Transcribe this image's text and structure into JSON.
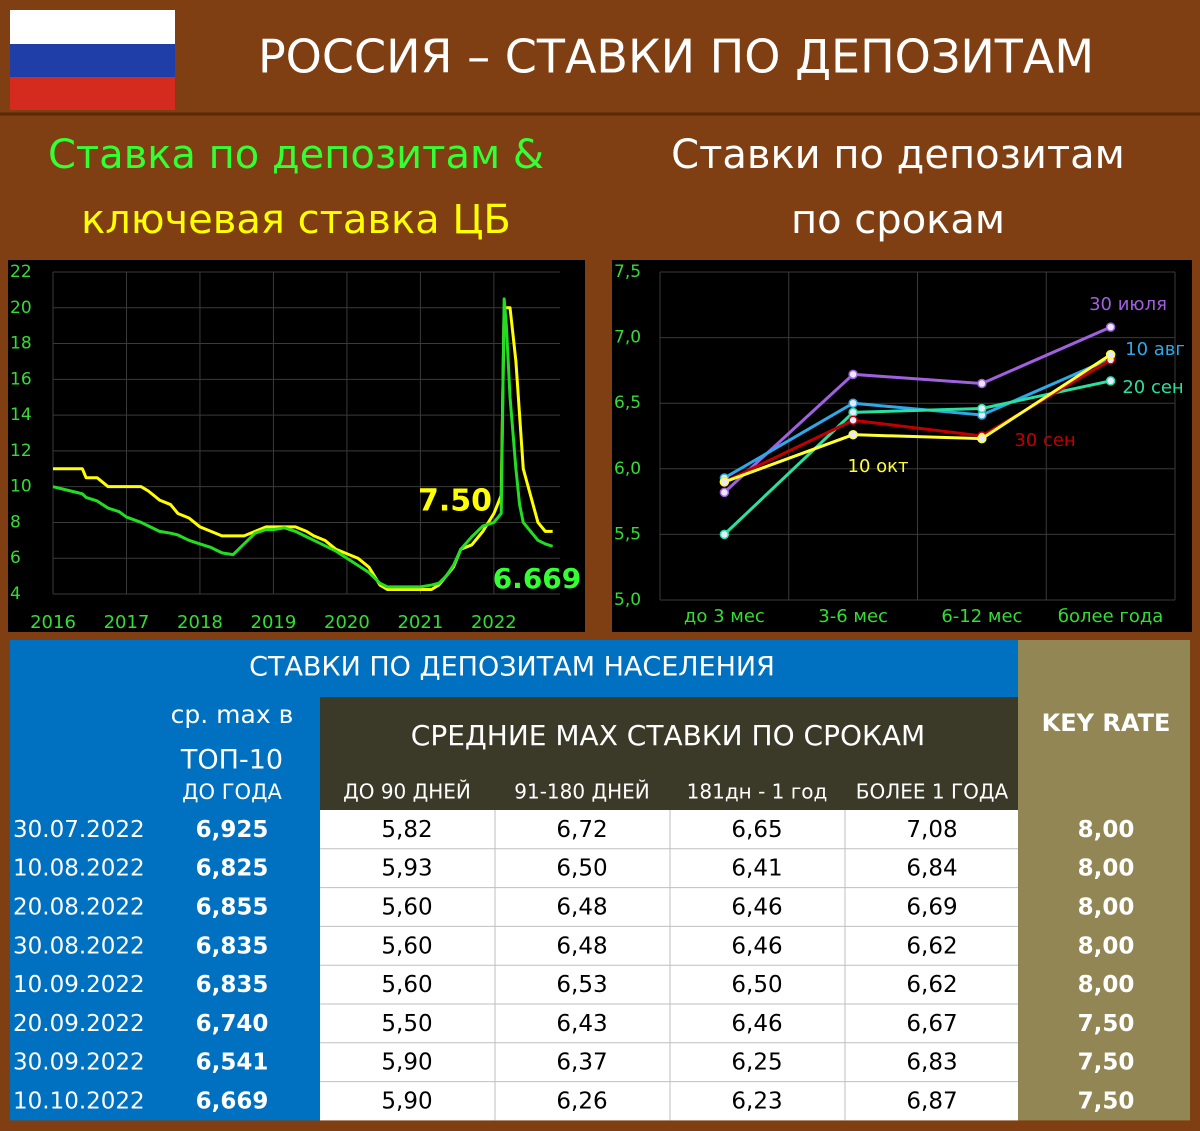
{
  "header": {
    "title": "РОССИЯ – СТАВКИ ПО ДЕПОЗИТАМ"
  },
  "panels": {
    "left_title": [
      "Ставка по депозитам &",
      "ключевая ставка ЦБ"
    ],
    "right_title": [
      "Ставки по депозитам",
      "по срокам"
    ]
  },
  "chart_data": [
    {
      "type": "line",
      "x": [
        2016.0,
        2016.2,
        2016.4,
        2016.45,
        2016.6,
        2016.75,
        2016.9,
        2017.0,
        2017.2,
        2017.3,
        2017.45,
        2017.6,
        2017.7,
        2017.85,
        2018.0,
        2018.15,
        2018.3,
        2018.45,
        2018.6,
        2018.75,
        2018.9,
        2019.0,
        2019.15,
        2019.3,
        2019.45,
        2019.55,
        2019.7,
        2019.85,
        2020.0,
        2020.15,
        2020.3,
        2020.45,
        2020.55,
        2020.7,
        2020.85,
        2021.0,
        2021.15,
        2021.25,
        2021.35,
        2021.45,
        2021.55,
        2021.7,
        2021.85,
        2022.0,
        2022.1,
        2022.14,
        2022.17,
        2022.22,
        2022.3,
        2022.35,
        2022.4,
        2022.5,
        2022.6,
        2022.7,
        2022.8
      ],
      "xlim": [
        2016,
        2022.9
      ],
      "xticks": [
        2016,
        2017,
        2018,
        2019,
        2020,
        2021,
        2022
      ],
      "ylim": [
        4,
        22
      ],
      "yticks": [
        4,
        6,
        8,
        10,
        12,
        14,
        16,
        18,
        20,
        22
      ],
      "grid": true,
      "series": [
        {
          "color": "#ffff00",
          "values": [
            11,
            11,
            11,
            10.5,
            10.5,
            10,
            10,
            10,
            10,
            9.75,
            9.25,
            9,
            8.5,
            8.25,
            7.75,
            7.5,
            7.25,
            7.25,
            7.25,
            7.5,
            7.75,
            7.75,
            7.75,
            7.75,
            7.5,
            7.25,
            7,
            6.5,
            6.25,
            6,
            5.5,
            4.5,
            4.25,
            4.25,
            4.25,
            4.25,
            4.25,
            4.5,
            5,
            5.5,
            6.5,
            6.75,
            7.5,
            8.5,
            9.5,
            20,
            20,
            20,
            17,
            14,
            11,
            9.5,
            8,
            7.5,
            7.5
          ]
        },
        {
          "color": "#22dd22",
          "values": [
            10,
            9.8,
            9.6,
            9.4,
            9.2,
            8.8,
            8.6,
            8.3,
            8.0,
            7.8,
            7.5,
            7.4,
            7.3,
            7.0,
            6.8,
            6.6,
            6.3,
            6.2,
            6.8,
            7.4,
            7.6,
            7.6,
            7.7,
            7.5,
            7.2,
            7.0,
            6.7,
            6.4,
            6.0,
            5.6,
            5.2,
            4.6,
            4.4,
            4.4,
            4.4,
            4.4,
            4.5,
            4.6,
            5.0,
            5.6,
            6.5,
            7.2,
            7.8,
            8.0,
            8.5,
            20.5,
            19.0,
            15.0,
            11.0,
            9.0,
            8.0,
            7.5,
            7.0,
            6.8,
            6.669
          ]
        }
      ],
      "annotations": [
        "7.50",
        "6.669"
      ]
    },
    {
      "type": "line",
      "categories": [
        "до 3 мес",
        "3-6 мес",
        "6-12 мес",
        "более года"
      ],
      "ylim": [
        5,
        7.5
      ],
      "yticks": [
        {
          "value": 5,
          "label": "5,0"
        },
        {
          "value": 5.5,
          "label": "5,5"
        },
        {
          "value": 6,
          "label": "6,0"
        },
        {
          "value": 6.5,
          "label": "6,5"
        },
        {
          "value": 7,
          "label": "7,0"
        },
        {
          "value": 7.5,
          "label": "7,5"
        }
      ],
      "grid": true,
      "series": [
        {
          "name": "30 июля",
          "color": "#a060e0",
          "values": [
            5.82,
            6.72,
            6.65,
            7.08
          ]
        },
        {
          "name": "10 авг",
          "color": "#2ea8e8",
          "values": [
            5.93,
            6.5,
            6.41,
            6.84
          ]
        },
        {
          "name": "20 сен",
          "color": "#28e0a0",
          "values": [
            5.5,
            6.43,
            6.46,
            6.67
          ]
        },
        {
          "name": "30 сен",
          "color": "#c00000",
          "values": [
            5.9,
            6.37,
            6.25,
            6.83
          ]
        },
        {
          "name": "10 окт",
          "color": "#ffff33",
          "values": [
            5.9,
            6.26,
            6.23,
            6.87
          ]
        }
      ]
    }
  ],
  "table": {
    "title": "СТАВКИ ПО ДЕПОЗИТАМ НАСЕЛЕНИЯ",
    "top10_header": [
      "ср. max в",
      "ТОП-10",
      "ДО ГОДА"
    ],
    "group_header": "СРЕДНИЕ MAX СТАВКИ ПО СРОКАМ",
    "columns": [
      "ДО 90 ДНЕЙ",
      "91-180 ДНЕЙ",
      "181дн - 1 год",
      "БОЛЕЕ 1 ГОДА"
    ],
    "key_header": "KEY RATE",
    "rows": [
      [
        "30.07.2022",
        "6,925",
        "5,82",
        "6,72",
        "6,65",
        "7,08",
        "8,00"
      ],
      [
        "10.08.2022",
        "6,825",
        "5,93",
        "6,50",
        "6,41",
        "6,84",
        "8,00"
      ],
      [
        "20.08.2022",
        "6,855",
        "5,60",
        "6,48",
        "6,46",
        "6,69",
        "8,00"
      ],
      [
        "30.08.2022",
        "6,835",
        "5,60",
        "6,48",
        "6,46",
        "6,62",
        "8,00"
      ],
      [
        "10.09.2022",
        "6,835",
        "5,60",
        "6,53",
        "6,50",
        "6,62",
        "8,00"
      ],
      [
        "20.09.2022",
        "6,740",
        "5,50",
        "6,43",
        "6,46",
        "6,67",
        "7,50"
      ],
      [
        "30.09.2022",
        "6,541",
        "5,90",
        "6,37",
        "6,25",
        "6,83",
        "7,50"
      ],
      [
        "10.10.2022",
        "6,669",
        "5,90",
        "6,26",
        "6,23",
        "6,87",
        "7,50"
      ]
    ]
  }
}
